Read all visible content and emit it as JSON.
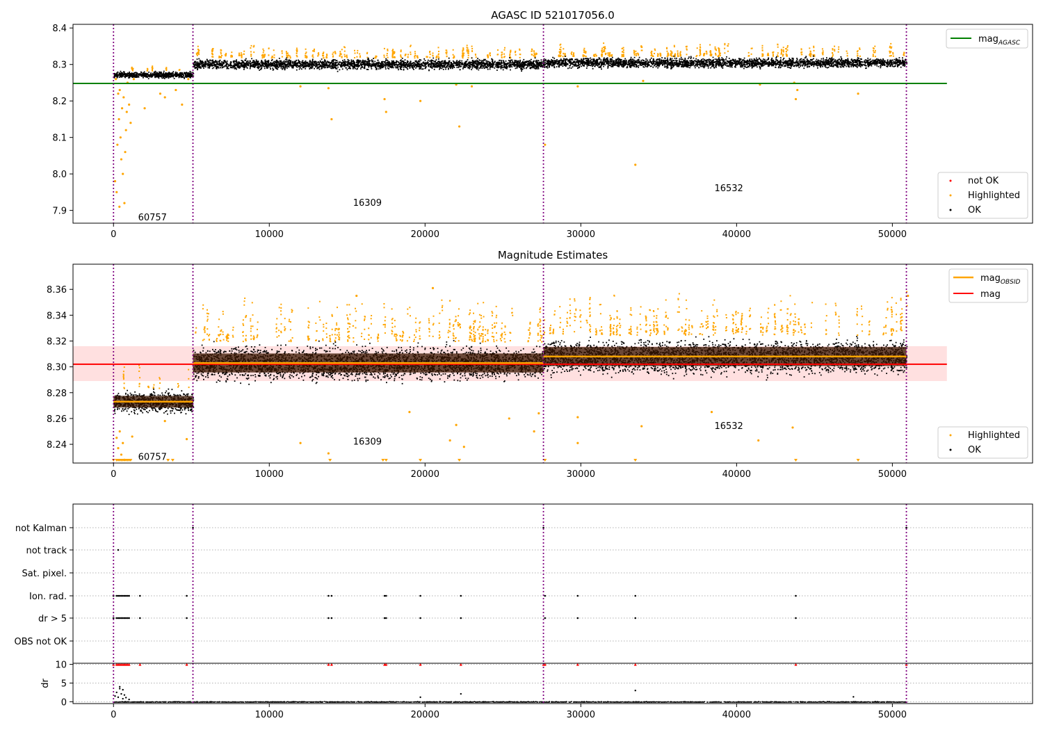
{
  "chart_data": [
    {
      "type": "scatter",
      "title": "AGASC ID 521017056.0",
      "xlabel": "",
      "ylabel": "",
      "xlim": [
        -2600,
        59000
      ],
      "ylim": [
        7.865,
        8.41
      ],
      "x_ticks": [
        0,
        10000,
        20000,
        30000,
        40000,
        50000
      ],
      "x_tick_labels": [
        "0",
        "10000",
        "20000",
        "30000",
        "40000",
        "50000"
      ],
      "y_ticks": [
        7.9,
        8.0,
        8.1,
        8.2,
        8.3,
        8.4
      ],
      "y_tick_labels": [
        "7.9",
        "8.0",
        "8.1",
        "8.2",
        "8.3",
        "8.4"
      ],
      "obs_boundaries": [
        0,
        5100,
        27600,
        50900
      ],
      "obs_labels": [
        {
          "text": "60757",
          "x": 2500,
          "y": 7.88
        },
        {
          "text": "16309",
          "x": 16300,
          "y": 7.92
        },
        {
          "text": "16532",
          "x": 39500,
          "y": 7.96
        }
      ],
      "reference_lines": [
        {
          "name": "mag_AGASC",
          "y": 8.248,
          "x_range": [
            -2600,
            53500
          ],
          "color": "#008000"
        }
      ],
      "ok_segments": [
        {
          "x_range": [
            0,
            5100
          ],
          "center": 8.273,
          "spread": 0.014
        },
        {
          "x_range": [
            5100,
            27600
          ],
          "center": 8.302,
          "spread": 0.022
        },
        {
          "x_range": [
            27600,
            50900
          ],
          "center": 8.306,
          "spread": 0.022
        }
      ],
      "highlighted_points": [
        [
          100,
          7.98
        ],
        [
          150,
          8.26
        ],
        [
          200,
          7.95
        ],
        [
          250,
          8.08
        ],
        [
          300,
          8.22
        ],
        [
          350,
          8.15
        ],
        [
          380,
          7.91
        ],
        [
          400,
          8.23
        ],
        [
          450,
          8.1
        ],
        [
          500,
          8.04
        ],
        [
          550,
          8.18
        ],
        [
          600,
          8.0
        ],
        [
          650,
          8.21
        ],
        [
          700,
          7.92
        ],
        [
          750,
          8.06
        ],
        [
          800,
          8.12
        ],
        [
          850,
          8.17
        ],
        [
          900,
          8.25
        ],
        [
          1000,
          8.19
        ],
        [
          1100,
          8.14
        ],
        [
          1300,
          8.26
        ],
        [
          2000,
          8.18
        ],
        [
          3000,
          8.22
        ],
        [
          3300,
          8.21
        ],
        [
          4000,
          8.23
        ],
        [
          4400,
          8.19
        ],
        [
          4800,
          8.26
        ],
        [
          12000,
          8.24
        ],
        [
          13800,
          8.235
        ],
        [
          14000,
          8.15
        ],
        [
          17400,
          8.205
        ],
        [
          17500,
          8.17
        ],
        [
          19700,
          8.2
        ],
        [
          22000,
          8.245
        ],
        [
          22200,
          8.13
        ],
        [
          23000,
          8.24
        ],
        [
          27700,
          8.08
        ],
        [
          29800,
          8.24
        ],
        [
          33500,
          8.025
        ],
        [
          34000,
          8.255
        ],
        [
          41500,
          8.245
        ],
        [
          43700,
          8.25
        ],
        [
          43800,
          8.205
        ],
        [
          43900,
          8.23
        ],
        [
          47800,
          8.22
        ]
      ],
      "legend_upper": [
        {
          "label": "mag",
          "subscript": "AGASC",
          "color": "#008000",
          "kind": "line"
        }
      ],
      "legend_lower": [
        {
          "label": "not OK",
          "color": "#ff0000",
          "kind": "point"
        },
        {
          "label": "Highlighted",
          "color": "#ffa500",
          "kind": "point"
        },
        {
          "label": "OK",
          "color": "#000000",
          "kind": "point"
        }
      ],
      "grid": false
    },
    {
      "type": "scatter",
      "title": "Magnitude Estimates",
      "xlabel": "",
      "ylabel": "",
      "xlim": [
        -2600,
        59000
      ],
      "ylim": [
        8.2255,
        8.3795
      ],
      "x_ticks": [
        0,
        10000,
        20000,
        30000,
        40000,
        50000
      ],
      "x_tick_labels": [
        "0",
        "10000",
        "20000",
        "30000",
        "40000",
        "50000"
      ],
      "y_ticks": [
        8.24,
        8.26,
        8.28,
        8.3,
        8.32,
        8.34,
        8.36
      ],
      "y_tick_labels": [
        "8.24",
        "8.26",
        "8.28",
        "8.30",
        "8.32",
        "8.34",
        "8.36"
      ],
      "obs_boundaries": [
        0,
        5100,
        27600,
        50900
      ],
      "obs_labels": [
        {
          "text": "60757",
          "x": 2500,
          "y": 8.23
        },
        {
          "text": "16309",
          "x": 16300,
          "y": 8.242
        },
        {
          "text": "16532",
          "x": 39500,
          "y": 8.254
        }
      ],
      "mag_line": {
        "name": "mag",
        "y": 8.302,
        "band": [
          8.289,
          8.316
        ],
        "x_range": [
          -2600,
          53500
        ],
        "color": "#ff0000"
      },
      "mag_obsid_segments": [
        {
          "x_range": [
            0,
            5100
          ],
          "y": 8.273
        },
        {
          "x_range": [
            5100,
            27600
          ],
          "y": 8.303
        },
        {
          "x_range": [
            27600,
            50900
          ],
          "y": 8.308
        }
      ],
      "ok_segments": [
        {
          "x_range": [
            0,
            5100
          ],
          "center": 8.273,
          "spread": 0.013
        },
        {
          "x_range": [
            5100,
            27600
          ],
          "center": 8.303,
          "spread": 0.021
        },
        {
          "x_range": [
            27600,
            50900
          ],
          "center": 8.308,
          "spread": 0.021
        }
      ],
      "highlighted_points": [
        [
          200,
          8.245
        ],
        [
          300,
          8.237
        ],
        [
          400,
          8.25
        ],
        [
          500,
          8.232
        ],
        [
          600,
          8.241
        ],
        [
          700,
          8.228
        ],
        [
          1200,
          8.246
        ],
        [
          3300,
          8.258
        ],
        [
          4700,
          8.244
        ],
        [
          12000,
          8.241
        ],
        [
          13800,
          8.233
        ],
        [
          15600,
          8.355
        ],
        [
          19000,
          8.265
        ],
        [
          20500,
          8.361
        ],
        [
          21600,
          8.243
        ],
        [
          22000,
          8.255
        ],
        [
          22500,
          8.238
        ],
        [
          25400,
          8.26
        ],
        [
          27000,
          8.25
        ],
        [
          27300,
          8.264
        ],
        [
          29800,
          8.261
        ],
        [
          29800,
          8.241
        ],
        [
          33900,
          8.254
        ],
        [
          38400,
          8.265
        ],
        [
          41400,
          8.243
        ],
        [
          43600,
          8.253
        ],
        [
          51000,
          8.355
        ]
      ],
      "highlighted_offscale_x": [
        0,
        200,
        300,
        400,
        500,
        600,
        700,
        800,
        900,
        1000,
        1100,
        3500,
        3800,
        13900,
        17300,
        17500,
        19700,
        22200,
        27700,
        33500,
        43800,
        47800
      ],
      "legend_upper": [
        {
          "label": "mag",
          "subscript": "OBSID",
          "color": "#ffa500",
          "kind": "line"
        },
        {
          "label": "mag",
          "subscript": "",
          "color": "#ff0000",
          "kind": "line"
        }
      ],
      "legend_lower": [
        {
          "label": "Highlighted",
          "color": "#ffa500",
          "kind": "point"
        },
        {
          "label": "OK",
          "color": "#000000",
          "kind": "point"
        }
      ],
      "grid": false
    },
    {
      "type": "scatter",
      "title": "",
      "xlabel": "",
      "ylabel": "",
      "xlim": [
        -2600,
        59000
      ],
      "categories": [
        "not Kalman",
        "not track",
        "Sat. pixel.",
        "Ion. rad.",
        "dr > 5",
        "OBS not OK"
      ],
      "obs_boundaries": [
        0,
        5100,
        27600,
        50900
      ],
      "flags": {
        "not Kalman": [
          5100,
          27600,
          50900
        ],
        "not track": [
          300
        ],
        "Sat. pixel.": [],
        "Ion. rad.": [
          0,
          200,
          300,
          400,
          500,
          600,
          700,
          800,
          900,
          1000,
          1700,
          4700,
          13800,
          14000,
          17400,
          17500,
          19700,
          22300,
          27700,
          29800,
          33500,
          43800
        ],
        "dr > 5": [
          0,
          200,
          300,
          400,
          500,
          600,
          700,
          800,
          900,
          1000,
          1700,
          4700,
          13800,
          14000,
          17400,
          17500,
          19700,
          22300,
          27700,
          29800,
          33500,
          43800
        ],
        "OBS not OK": []
      },
      "grid": "horizontal dotted"
    },
    {
      "type": "scatter",
      "title": "",
      "xlabel": "",
      "ylabel": "dr",
      "xlim": [
        -2600,
        59000
      ],
      "ylim": [
        -0.5,
        10.3
      ],
      "y_ticks": [
        0,
        5,
        10
      ],
      "y_tick_labels": [
        "0",
        "5",
        "10"
      ],
      "x_ticks": [
        0,
        10000,
        20000,
        30000,
        40000,
        50000
      ],
      "x_tick_labels": [
        "0",
        "10000",
        "20000",
        "30000",
        "40000",
        "50000"
      ],
      "obs_boundaries": [
        0,
        5100,
        27600,
        50900
      ],
      "clipped_at_10_x": [
        0,
        200,
        300,
        400,
        500,
        600,
        700,
        800,
        900,
        1000,
        1700,
        4700,
        13800,
        14000,
        17400,
        17500,
        19700,
        22300,
        27600,
        27700,
        29800,
        33500,
        43800,
        50900
      ],
      "scattered_points": [
        [
          100,
          1.5
        ],
        [
          200,
          2.5
        ],
        [
          300,
          1.2
        ],
        [
          400,
          3.5
        ],
        [
          500,
          2.1
        ],
        [
          600,
          0.8
        ],
        [
          700,
          1.8
        ],
        [
          800,
          1.1
        ],
        [
          400,
          4.0
        ],
        [
          600,
          3.2
        ],
        [
          1000,
          0.6
        ],
        [
          19700,
          1.2
        ],
        [
          22300,
          2.1
        ],
        [
          33500,
          3.0
        ],
        [
          47500,
          1.3
        ]
      ],
      "baseline": {
        "x_range": [
          0,
          50900
        ],
        "y": 0.1
      },
      "grid": "horizontal dotted"
    }
  ]
}
